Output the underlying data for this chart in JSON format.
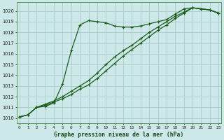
{
  "xlabel": "Graphe pression niveau de la mer (hPa)",
  "background_color": "#cce8e8",
  "grid_color": "#aacccc",
  "line_color": "#1a5c1a",
  "xlim": [
    -0.3,
    23.3
  ],
  "ylim": [
    1009.5,
    1020.8
  ],
  "yticks": [
    1010,
    1011,
    1012,
    1013,
    1014,
    1015,
    1016,
    1017,
    1018,
    1019,
    1020
  ],
  "xticks": [
    0,
    1,
    2,
    3,
    4,
    5,
    6,
    7,
    8,
    9,
    10,
    11,
    12,
    13,
    14,
    15,
    16,
    17,
    18,
    19,
    20,
    21,
    22,
    23
  ],
  "series1_x": [
    0,
    1,
    2,
    3,
    4,
    5,
    6,
    7,
    8,
    9,
    10,
    11,
    12,
    13,
    14,
    15,
    16,
    17,
    18,
    19,
    20,
    21,
    22,
    23
  ],
  "series1_y": [
    1010.1,
    1010.3,
    1011.0,
    1011.1,
    1011.4,
    1013.2,
    1016.3,
    1018.7,
    1019.1,
    1019.0,
    1018.9,
    1018.6,
    1018.5,
    1018.5,
    1018.6,
    1018.8,
    1019.0,
    1019.2,
    1019.7,
    1020.2,
    1020.3,
    1020.2,
    1020.1,
    1019.8
  ],
  "series2_x": [
    0,
    1,
    2,
    3,
    4,
    5,
    6,
    7,
    8,
    9,
    10,
    11,
    12,
    13,
    14,
    15,
    16,
    17,
    18,
    19,
    20,
    21,
    22,
    23
  ],
  "series2_y": [
    1010.1,
    1010.3,
    1011.0,
    1011.3,
    1011.6,
    1012.0,
    1012.5,
    1013.0,
    1013.5,
    1014.2,
    1015.0,
    1015.7,
    1016.3,
    1016.8,
    1017.4,
    1018.0,
    1018.5,
    1019.0,
    1019.5,
    1019.9,
    1020.3,
    1020.2,
    1020.1,
    1019.8
  ],
  "series3_x": [
    0,
    1,
    2,
    3,
    4,
    5,
    6,
    7,
    8,
    9,
    10,
    11,
    12,
    13,
    14,
    15,
    16,
    17,
    18,
    19,
    20,
    21,
    22,
    23
  ],
  "series3_y": [
    1010.1,
    1010.3,
    1011.0,
    1011.2,
    1011.5,
    1011.8,
    1012.2,
    1012.7,
    1013.1,
    1013.7,
    1014.4,
    1015.1,
    1015.8,
    1016.4,
    1017.0,
    1017.6,
    1018.2,
    1018.7,
    1019.3,
    1019.8,
    1020.3,
    1020.2,
    1020.1,
    1019.8
  ]
}
